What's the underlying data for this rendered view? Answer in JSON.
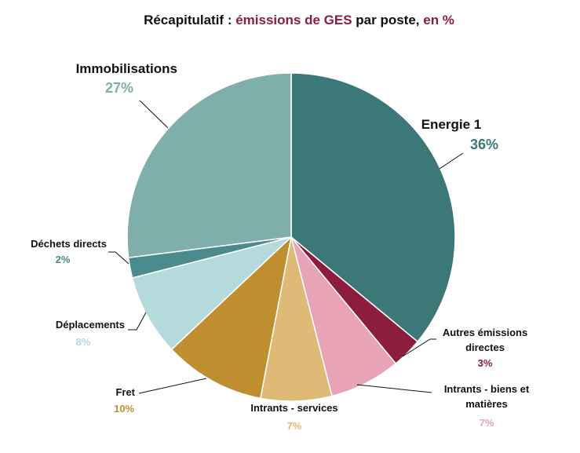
{
  "chart_data": {
    "type": "pie",
    "title": {
      "part1": "Récapitulatif : ",
      "part2": "émissions de GES",
      "part3": " par poste, ",
      "part4": "en %"
    },
    "accent_color": "#8b1e3f",
    "start_angle_deg": 0,
    "direction": "clockwise",
    "slices": [
      {
        "key": "energie",
        "label": "Energie 1",
        "value": 36,
        "pct_text": "36%",
        "color": "#3d7878",
        "pct_color": "#3d7878"
      },
      {
        "key": "autres",
        "label": "Autres émissions directes",
        "value": 3,
        "pct_text": "3%",
        "color": "#8b1e3f",
        "pct_color": "#8b1e3f"
      },
      {
        "key": "intrants-biens",
        "label": "Intrants - biens et matières",
        "value": 7,
        "pct_text": "7%",
        "color": "#e8a3b6",
        "pct_color": "#e8a3b6"
      },
      {
        "key": "intrants-serv",
        "label": "Intrants - services",
        "value": 7,
        "pct_text": "7%",
        "color": "#dfba76",
        "pct_color": "#dfba76"
      },
      {
        "key": "fret",
        "label": "Fret",
        "value": 10,
        "pct_text": "10%",
        "color": "#bf8e2f",
        "pct_color": "#bf8e2f"
      },
      {
        "key": "deplacements",
        "label": "Déplacements",
        "value": 8,
        "pct_text": "8%",
        "color": "#b5dadc",
        "pct_color": "#b5dadc"
      },
      {
        "key": "dechets",
        "label": "Déchets directs",
        "value": 2,
        "pct_text": "2%",
        "color": "#4a8c8d",
        "pct_color": "#4a8c8d"
      },
      {
        "key": "immobilisations",
        "label": "Immobilisations",
        "value": 27,
        "pct_text": "27%",
        "color": "#80aeab",
        "pct_color": "#80aeab"
      }
    ]
  }
}
